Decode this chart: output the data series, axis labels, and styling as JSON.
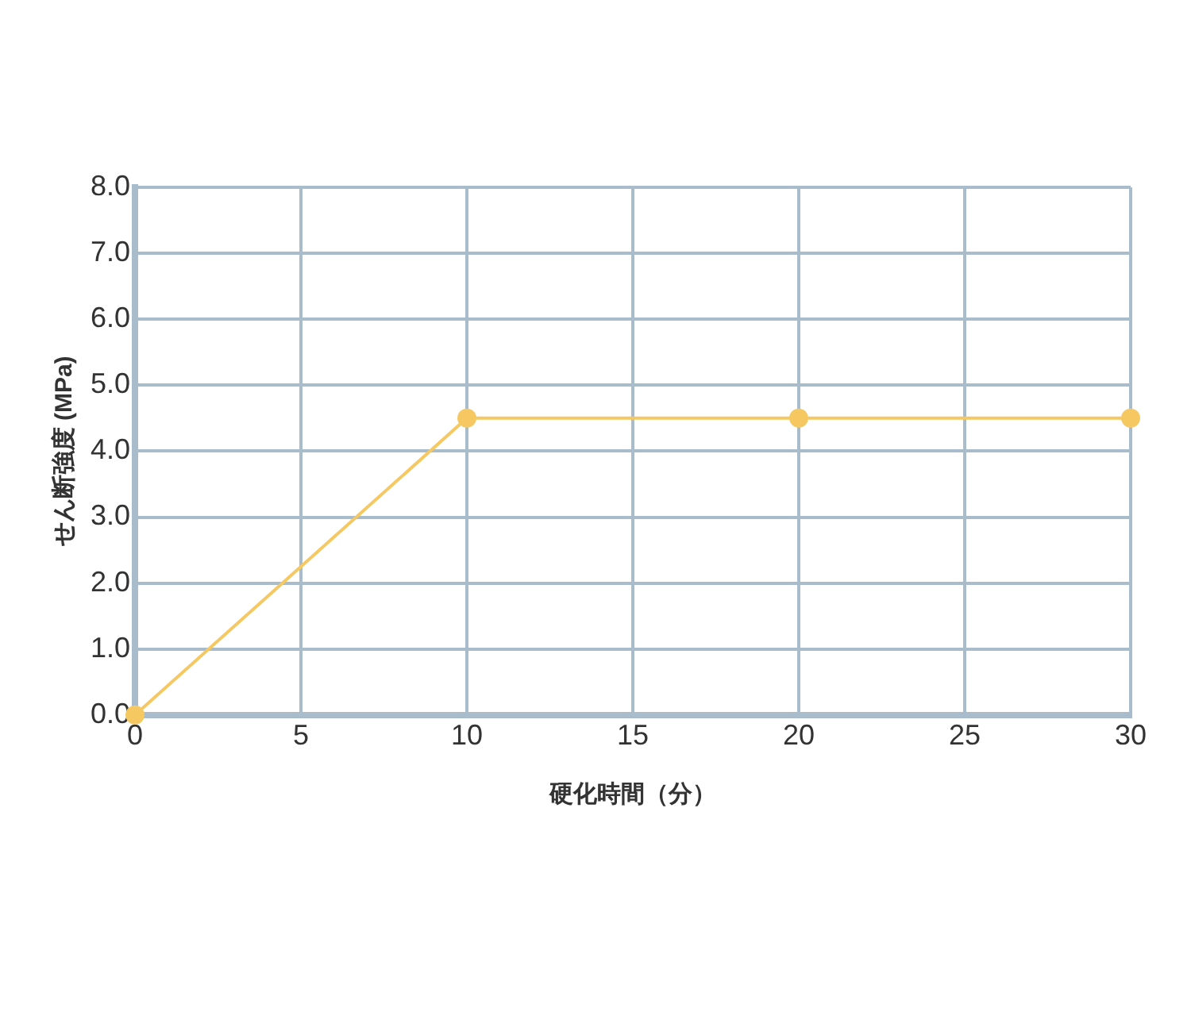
{
  "chart_data": {
    "type": "line",
    "xlabel": "硬化時間（分）",
    "ylabel": "せん断強度 (MPa)",
    "x": [
      0,
      10,
      20,
      30
    ],
    "series": [
      {
        "color": "#f5c862",
        "values": [
          0,
          4.5,
          4.5,
          4.5
        ]
      }
    ],
    "xlim": [
      0,
      30
    ],
    "xticks": [
      0,
      5,
      10,
      15,
      20,
      25,
      30
    ],
    "ylim": [
      0,
      8
    ],
    "yticks": [
      {
        "value": 0,
        "label": "0.0"
      },
      {
        "value": 1,
        "label": "1.0"
      },
      {
        "value": 2,
        "label": "2.0"
      },
      {
        "value": 3,
        "label": "3.0"
      },
      {
        "value": 4,
        "label": "4.0"
      },
      {
        "value": 5,
        "label": "5.0"
      },
      {
        "value": 6,
        "label": "6.0"
      },
      {
        "value": 7,
        "label": "7.0"
      },
      {
        "value": 8,
        "label": "8.0"
      }
    ],
    "grid": true,
    "legend": false,
    "marker": "circle",
    "line_style": "solid"
  }
}
